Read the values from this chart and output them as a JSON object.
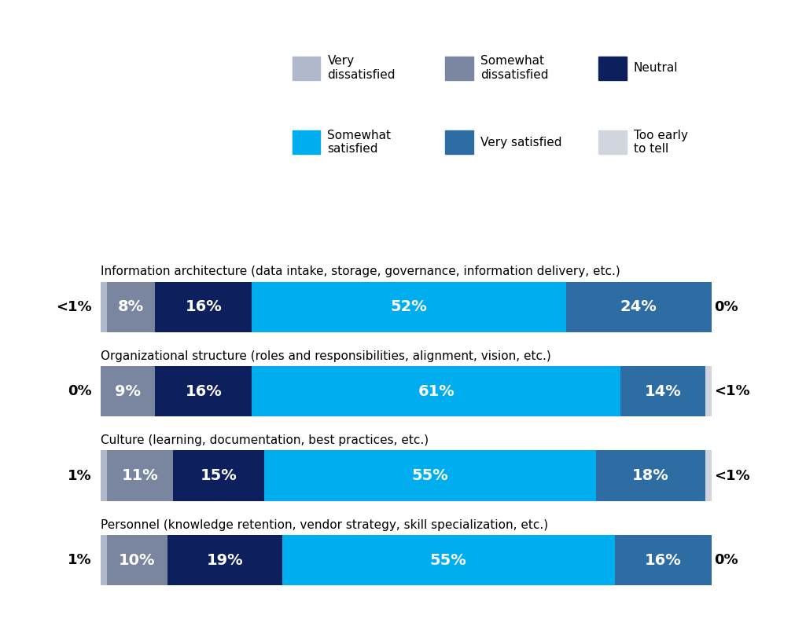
{
  "categories": [
    "Information architecture (data intake, storage, governance, information delivery, etc.)",
    "Organizational structure (roles and responsibilities, alignment, vision, etc.)",
    "Culture (learning, documentation, best practices, etc.)",
    "Personnel (knowledge retention, vendor strategy, skill specialization, etc.)"
  ],
  "segments": [
    {
      "label": "Very dissatisfied",
      "color": "#b0b8cc",
      "values": [
        1,
        0,
        1,
        1
      ]
    },
    {
      "label": "Somewhat dissatisfied",
      "color": "#7a85a0",
      "values": [
        8,
        9,
        11,
        10
      ]
    },
    {
      "label": "Neutral",
      "color": "#0d1f5c",
      "values": [
        16,
        16,
        15,
        19
      ]
    },
    {
      "label": "Somewhat satisfied",
      "color": "#00aeef",
      "values": [
        52,
        61,
        55,
        55
      ]
    },
    {
      "label": "Very satisfied",
      "color": "#2e6da4",
      "values": [
        24,
        14,
        18,
        16
      ]
    },
    {
      "label": "Too early to tell",
      "color": "#d0d5de",
      "values": [
        0,
        1,
        1,
        0
      ]
    }
  ],
  "left_labels": [
    "<1%",
    "0%",
    "1%",
    "1%"
  ],
  "right_labels": [
    "0%",
    "<1%",
    "<1%",
    "0%"
  ],
  "bar_height": 0.6,
  "bg_color": "#ffffff",
  "text_color": "#000000",
  "bar_text_color": "#ffffff",
  "category_fontsize": 11,
  "side_label_fontsize": 13,
  "bar_fontsize": 14,
  "legend_fontsize": 11
}
